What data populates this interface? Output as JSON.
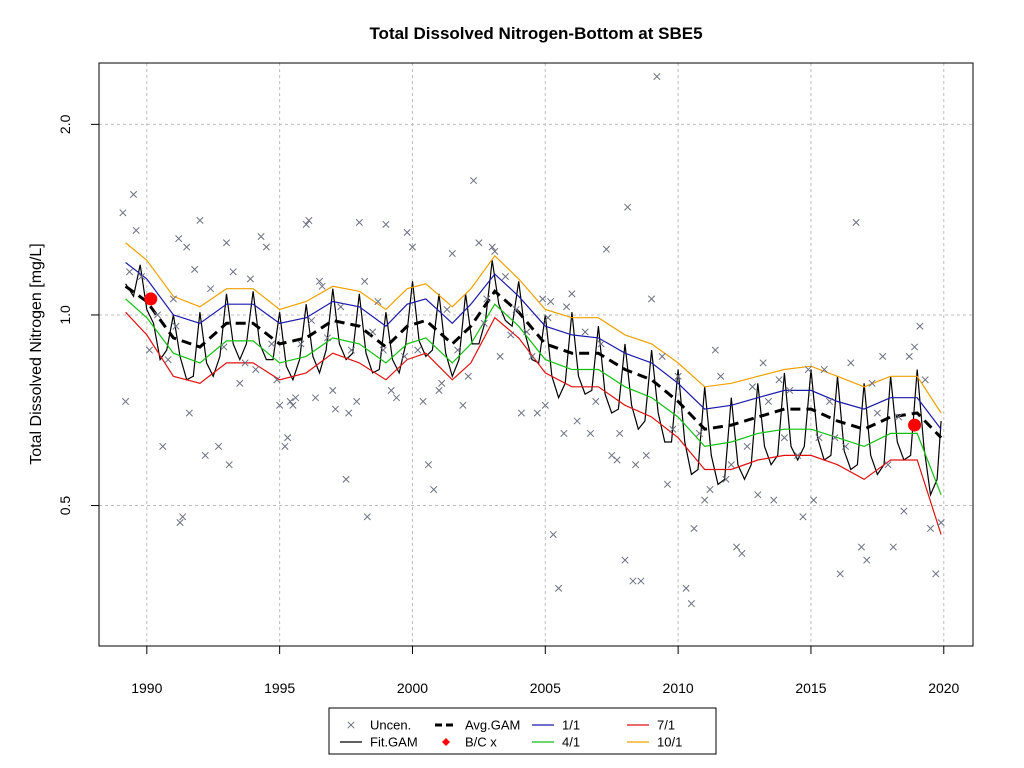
{
  "chart_data": {
    "type": "scatter",
    "title": "Total Dissolved Nitrogen-Bottom at SBE5",
    "ylabel": "Total Dissolved Nitrogen [mg/L]",
    "xlabel": "",
    "y_scale": "log",
    "xlim": [
      1988.2,
      2021.1
    ],
    "ylim": [
      0.3,
      2.5
    ],
    "x_ticks": [
      1990,
      1995,
      2000,
      2005,
      2010,
      2015,
      2020
    ],
    "x_tick_labels": [
      "1990",
      "1995",
      "2000",
      "2005",
      "2010",
      "2015",
      "2020"
    ],
    "y_ticks": [
      0.5,
      1.0,
      2.0
    ],
    "y_tick_labels": [
      "0.5",
      "1.0",
      "2.0"
    ],
    "grid": true,
    "legend_position": "bottom-center",
    "legend": [
      {
        "label": "Uncen.",
        "kind": "cross",
        "color": "#6b6e80"
      },
      {
        "label": "Avg.GAM",
        "kind": "dashed",
        "color": "#000000"
      },
      {
        "label": "1/1",
        "kind": "line",
        "color": "#1a1aa8"
      },
      {
        "label": "7/1",
        "kind": "line",
        "color": "#e01010"
      },
      {
        "label": "Fit.GAM",
        "kind": "line",
        "color": "#000000"
      },
      {
        "label": "B/C x",
        "kind": "dot",
        "color": "#ff0000"
      },
      {
        "label": "4/1",
        "kind": "line",
        "color": "#10c010"
      },
      {
        "label": "10/1",
        "kind": "line",
        "color": "#f0a000"
      }
    ],
    "series": [
      {
        "name": "Avg.GAM",
        "color": "#000000",
        "style": "dashed",
        "x": [
          1989.2,
          1990,
          1991,
          1992,
          1993,
          1994,
          1995,
          1996,
          1997,
          1998,
          1999,
          1999.8,
          2000.5,
          2001.5,
          2002.2,
          2003.1,
          2004,
          2005,
          2006,
          2007,
          2008,
          2009,
          2010,
          2011,
          2012,
          2013,
          2014,
          2015,
          2016,
          2017,
          2018,
          2019,
          2019.9
        ],
        "y": [
          1.11,
          1.05,
          0.92,
          0.89,
          0.97,
          0.97,
          0.9,
          0.92,
          0.98,
          0.96,
          0.89,
          0.96,
          0.98,
          0.9,
          0.96,
          1.09,
          1.01,
          0.9,
          0.87,
          0.87,
          0.82,
          0.79,
          0.73,
          0.66,
          0.67,
          0.69,
          0.71,
          0.71,
          0.68,
          0.66,
          0.69,
          0.7,
          0.64
        ]
      },
      {
        "name": "1/1",
        "color": "#1a1aa8",
        "style": "solid",
        "x": [
          1989.2,
          1990,
          1991,
          1992,
          1993,
          1994,
          1995,
          1996,
          1997,
          1998,
          1999,
          1999.8,
          2000.5,
          2001.5,
          2002.2,
          2003.1,
          2004,
          2005,
          2006,
          2007,
          2008,
          2009,
          2010,
          2011,
          2012,
          2013,
          2014,
          2015,
          2016,
          2017,
          2018,
          2019,
          2019.9
        ],
        "y": [
          1.21,
          1.14,
          1.0,
          0.97,
          1.04,
          1.04,
          0.97,
          0.99,
          1.05,
          1.03,
          0.96,
          1.04,
          1.06,
          0.97,
          1.04,
          1.16,
          1.07,
          0.96,
          0.93,
          0.92,
          0.87,
          0.84,
          0.78,
          0.71,
          0.72,
          0.74,
          0.76,
          0.76,
          0.73,
          0.71,
          0.74,
          0.74,
          0.66
        ]
      },
      {
        "name": "4/1",
        "color": "#10c010",
        "style": "solid",
        "x": [
          1989.2,
          1990,
          1991,
          1992,
          1993,
          1994,
          1995,
          1996,
          1997,
          1998,
          1999,
          1999.8,
          2000.5,
          2001.5,
          2002.2,
          2003.1,
          2004,
          2005,
          2006,
          2007,
          2008,
          2009,
          2010,
          2011,
          2012,
          2013,
          2014,
          2015,
          2016,
          2017,
          2018,
          2019,
          2019.9
        ],
        "y": [
          1.06,
          0.99,
          0.87,
          0.84,
          0.91,
          0.91,
          0.84,
          0.86,
          0.92,
          0.9,
          0.84,
          0.9,
          0.92,
          0.84,
          0.9,
          1.04,
          0.96,
          0.85,
          0.82,
          0.82,
          0.77,
          0.74,
          0.69,
          0.62,
          0.63,
          0.65,
          0.66,
          0.66,
          0.64,
          0.62,
          0.65,
          0.65,
          0.52
        ]
      },
      {
        "name": "7/1",
        "color": "#e01010",
        "style": "solid",
        "x": [
          1989.2,
          1990,
          1991,
          1992,
          1993,
          1994,
          1995,
          1996,
          1997,
          1998,
          1999,
          1999.8,
          2000.5,
          2001.5,
          2002.2,
          2003.1,
          2004,
          2005,
          2006,
          2007,
          2008,
          2009,
          2010,
          2011,
          2012,
          2013,
          2014,
          2015,
          2016,
          2017,
          2018,
          2019,
          2019.9
        ],
        "y": [
          1.01,
          0.93,
          0.8,
          0.78,
          0.84,
          0.84,
          0.79,
          0.81,
          0.87,
          0.84,
          0.79,
          0.85,
          0.87,
          0.79,
          0.84,
          0.99,
          0.92,
          0.81,
          0.77,
          0.77,
          0.72,
          0.69,
          0.64,
          0.57,
          0.57,
          0.59,
          0.6,
          0.6,
          0.58,
          0.55,
          0.59,
          0.59,
          0.45
        ]
      },
      {
        "name": "10/1",
        "color": "#f0a000",
        "style": "solid",
        "x": [
          1989.2,
          1990,
          1991,
          1992,
          1993,
          1994,
          1995,
          1996,
          1997,
          1998,
          1999,
          1999.8,
          2000.5,
          2001.5,
          2002.2,
          2003.1,
          2004,
          2005,
          2006,
          2007,
          2008,
          2009,
          2010,
          2011,
          2012,
          2013,
          2014,
          2015,
          2016,
          2017,
          2018,
          2019,
          2019.9
        ],
        "y": [
          1.3,
          1.22,
          1.07,
          1.03,
          1.1,
          1.1,
          1.02,
          1.05,
          1.11,
          1.09,
          1.02,
          1.1,
          1.12,
          1.03,
          1.1,
          1.24,
          1.14,
          1.02,
          0.99,
          0.99,
          0.93,
          0.9,
          0.84,
          0.77,
          0.78,
          0.8,
          0.82,
          0.83,
          0.8,
          0.77,
          0.8,
          0.8,
          0.7
        ]
      },
      {
        "name": "Fit.GAM",
        "color": "#000000",
        "style": "solid",
        "x": [
          1989.2,
          1989.5,
          1989.75,
          1990,
          1990.25,
          1990.5,
          1990.75,
          1991,
          1991.25,
          1991.5,
          1991.75,
          1992,
          1992.25,
          1992.5,
          1992.75,
          1993,
          1993.25,
          1993.5,
          1993.75,
          1994,
          1994.25,
          1994.5,
          1994.75,
          1995,
          1995.25,
          1995.5,
          1995.75,
          1996,
          1996.25,
          1996.5,
          1996.75,
          1997,
          1997.25,
          1997.5,
          1997.75,
          1998,
          1998.25,
          1998.5,
          1998.75,
          1999,
          1999.25,
          1999.5,
          1999.75,
          2000,
          2000.25,
          2000.5,
          2000.75,
          2001,
          2001.25,
          2001.5,
          2001.75,
          2002,
          2002.25,
          2002.5,
          2002.75,
          2003,
          2003.25,
          2003.5,
          2003.75,
          2004,
          2004.25,
          2004.5,
          2004.75,
          2005,
          2005.25,
          2005.5,
          2005.75,
          2006,
          2006.25,
          2006.5,
          2006.75,
          2007,
          2007.25,
          2007.5,
          2007.75,
          2008,
          2008.25,
          2008.5,
          2008.75,
          2009,
          2009.25,
          2009.5,
          2009.75,
          2010,
          2010.25,
          2010.5,
          2010.75,
          2011,
          2011.25,
          2011.5,
          2011.75,
          2012,
          2012.25,
          2012.5,
          2012.75,
          2013,
          2013.25,
          2013.5,
          2013.75,
          2014,
          2014.25,
          2014.5,
          2014.75,
          2015,
          2015.25,
          2015.5,
          2015.75,
          2016,
          2016.25,
          2016.5,
          2016.75,
          2017,
          2017.25,
          2017.5,
          2017.75,
          2018,
          2018.25,
          2018.5,
          2018.75,
          2019,
          2019.25,
          2019.5,
          2019.75,
          2019.9
        ],
        "y": [
          1.12,
          1.07,
          1.2,
          1.02,
          0.97,
          0.85,
          0.88,
          1.0,
          0.86,
          0.79,
          0.8,
          1.01,
          0.84,
          0.8,
          0.86,
          1.08,
          0.9,
          0.85,
          0.9,
          1.09,
          0.9,
          0.85,
          0.85,
          1.01,
          0.83,
          0.79,
          0.85,
          1.04,
          0.86,
          0.81,
          0.88,
          1.1,
          0.9,
          0.85,
          0.87,
          1.08,
          0.87,
          0.81,
          0.82,
          1.01,
          0.85,
          0.81,
          0.9,
          1.13,
          0.91,
          0.86,
          0.88,
          1.08,
          0.87,
          0.8,
          0.85,
          1.08,
          0.9,
          0.9,
          0.98,
          1.22,
          1.04,
          0.98,
          0.96,
          1.13,
          0.93,
          0.85,
          0.84,
          1.0,
          0.8,
          0.74,
          0.78,
          1.01,
          0.8,
          0.75,
          0.76,
          0.96,
          0.75,
          0.7,
          0.71,
          0.9,
          0.72,
          0.66,
          0.68,
          0.88,
          0.7,
          0.63,
          0.63,
          0.82,
          0.63,
          0.56,
          0.57,
          0.77,
          0.6,
          0.54,
          0.55,
          0.74,
          0.58,
          0.55,
          0.58,
          0.78,
          0.62,
          0.58,
          0.6,
          0.81,
          0.62,
          0.59,
          0.62,
          0.82,
          0.64,
          0.59,
          0.6,
          0.8,
          0.61,
          0.57,
          0.58,
          0.78,
          0.6,
          0.56,
          0.58,
          0.8,
          0.63,
          0.59,
          0.6,
          0.82,
          0.62,
          0.52,
          0.55,
          0.68
        ]
      },
      {
        "name": "B/C x",
        "color": "#ff0000",
        "style": "dot",
        "x": [
          1990.15,
          2018.9
        ],
        "y": [
          1.06,
          0.67
        ]
      },
      {
        "name": "Uncen.",
        "color": "#6b6e80",
        "style": "cross",
        "x": [
          1989.1,
          1989.2,
          1989.35,
          1989.5,
          1989.6,
          1989.8,
          1990.1,
          1990.4,
          1990.6,
          1990.8,
          1991.0,
          1991.1,
          1991.2,
          1991.25,
          1991.35,
          1991.5,
          1991.6,
          1991.8,
          1992.0,
          1992.2,
          1992.4,
          1992.7,
          1992.9,
          1993.0,
          1993.1,
          1993.25,
          1993.5,
          1993.7,
          1993.9,
          1994.1,
          1994.3,
          1994.5,
          1994.7,
          1994.9,
          1995.0,
          1995.2,
          1995.3,
          1995.4,
          1995.5,
          1995.6,
          1995.8,
          1996.0,
          1996.1,
          1996.2,
          1996.35,
          1996.5,
          1996.6,
          1996.8,
          1997.0,
          1997.1,
          1997.3,
          1997.5,
          1997.6,
          1997.7,
          1997.9,
          1998.0,
          1998.2,
          1998.3,
          1998.5,
          1998.7,
          1998.9,
          1999.0,
          1999.2,
          1999.4,
          1999.7,
          1999.8,
          2000.0,
          2000.2,
          2000.4,
          2000.6,
          2000.8,
          2001.0,
          2001.1,
          2001.3,
          2001.5,
          2001.7,
          2001.9,
          2002.1,
          2002.3,
          2002.5,
          2002.7,
          2002.8,
          2003.0,
          2003.1,
          2003.3,
          2003.5,
          2003.7,
          2003.9,
          2004.1,
          2004.3,
          2004.5,
          2004.7,
          2004.9,
          2005.0,
          2005.1,
          2005.2,
          2005.3,
          2005.5,
          2005.7,
          2005.8,
          2006.0,
          2006.2,
          2006.5,
          2006.7,
          2006.9,
          2007.1,
          2007.3,
          2007.5,
          2007.7,
          2007.8,
          2008.0,
          2008.1,
          2008.3,
          2008.4,
          2008.6,
          2008.8,
          2009.0,
          2009.2,
          2009.4,
          2009.6,
          2009.8,
          2010.0,
          2010.3,
          2010.5,
          2010.6,
          2010.8,
          2011.0,
          2011.2,
          2011.4,
          2011.6,
          2011.8,
          2012.0,
          2012.2,
          2012.4,
          2012.6,
          2012.8,
          2013.0,
          2013.2,
          2013.4,
          2013.6,
          2013.8,
          2014.0,
          2014.2,
          2014.5,
          2014.7,
          2014.9,
          2015.1,
          2015.3,
          2015.5,
          2015.7,
          2015.9,
          2016.1,
          2016.3,
          2016.5,
          2016.7,
          2016.9,
          2017.1,
          2017.3,
          2017.5,
          2017.7,
          2017.9,
          2018.1,
          2018.3,
          2018.5,
          2018.7,
          2018.9,
          2019.1,
          2019.3,
          2019.5,
          2019.7,
          2019.9
        ],
        "y": [
          1.45,
          0.73,
          1.17,
          1.55,
          1.36,
          1.15,
          0.88,
          1.0,
          0.62,
          0.85,
          1.06,
          0.96,
          1.32,
          0.47,
          0.48,
          1.28,
          0.7,
          1.18,
          1.41,
          0.6,
          1.1,
          0.62,
          0.89,
          1.3,
          0.58,
          1.17,
          0.78,
          0.84,
          1.14,
          0.82,
          1.33,
          1.28,
          0.9,
          0.79,
          0.72,
          0.62,
          0.64,
          0.73,
          0.72,
          0.74,
          0.9,
          1.39,
          1.41,
          0.98,
          0.74,
          1.13,
          1.11,
          0.92,
          0.76,
          0.71,
          1.03,
          0.55,
          0.7,
          0.88,
          0.73,
          1.4,
          1.13,
          0.48,
          0.94,
          1.05,
          0.88,
          1.39,
          0.76,
          0.74,
          0.86,
          1.35,
          1.28,
          0.88,
          0.73,
          0.58,
          0.53,
          0.76,
          0.78,
          1.02,
          1.25,
          0.88,
          0.72,
          0.8,
          1.63,
          1.3,
          0.97,
          1.06,
          1.28,
          1.26,
          0.86,
          1.15,
          0.93,
          1.02,
          0.7,
          0.94,
          0.86,
          0.7,
          1.06,
          0.72,
          0.99,
          1.05,
          0.45,
          0.37,
          0.65,
          1.03,
          1.08,
          0.68,
          0.94,
          0.65,
          0.73,
          0.9,
          1.27,
          0.6,
          0.59,
          0.65,
          0.41,
          1.48,
          0.38,
          0.58,
          0.38,
          0.6,
          1.06,
          2.38,
          0.86,
          0.54,
          0.66,
          0.8,
          0.37,
          0.35,
          0.46,
          0.65,
          0.51,
          0.53,
          0.88,
          0.8,
          0.55,
          0.58,
          0.43,
          0.42,
          0.62,
          0.77,
          0.52,
          0.84,
          0.73,
          0.51,
          0.79,
          0.64,
          0.76,
          0.6,
          0.48,
          0.82,
          0.51,
          0.64,
          0.82,
          0.73,
          0.64,
          0.39,
          0.62,
          0.84,
          1.4,
          0.43,
          0.41,
          0.78,
          0.7,
          0.86,
          0.58,
          0.43,
          0.69,
          0.49,
          0.86,
          0.89,
          0.96,
          0.79,
          0.46,
          0.39,
          0.47
        ]
      }
    ]
  }
}
